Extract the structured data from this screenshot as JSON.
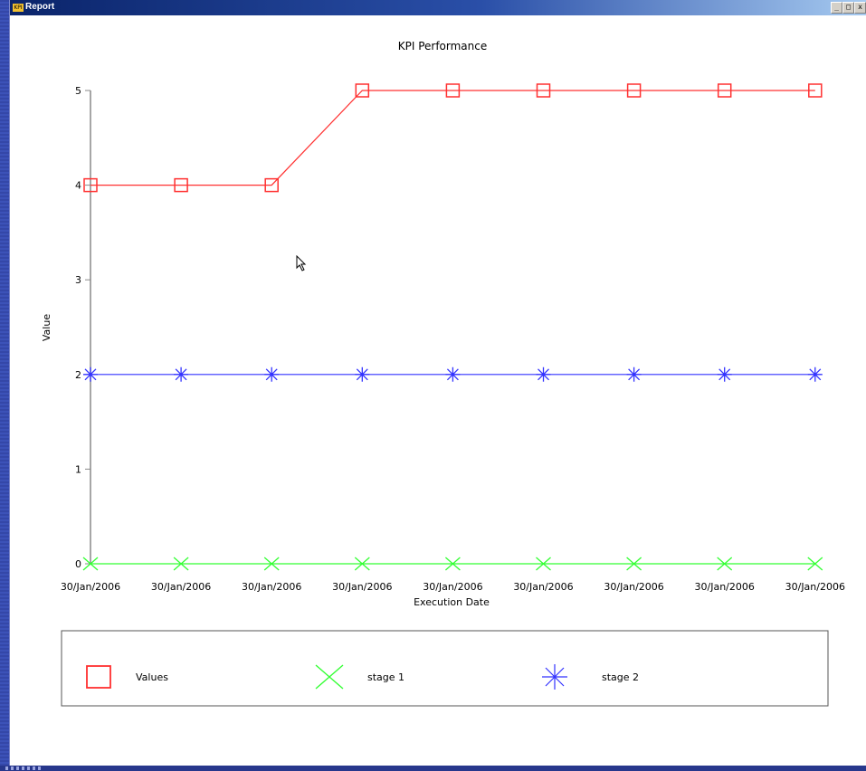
{
  "window": {
    "title": "Report",
    "app_icon_text": "KPI",
    "minimize": "_",
    "maximize": "□",
    "close": "x"
  },
  "colors": {
    "values": "#ff3030",
    "stage1": "#33ff33",
    "stage2": "#3333ff",
    "axis": "#888888"
  },
  "chart_data": {
    "type": "line",
    "title": "KPI Performance",
    "xlabel": "Execution Date",
    "ylabel": "Value",
    "categories": [
      "30/Jan/2006",
      "30/Jan/2006",
      "30/Jan/2006",
      "30/Jan/2006",
      "30/Jan/2006",
      "30/Jan/2006",
      "30/Jan/2006",
      "30/Jan/2006",
      "30/Jan/2006"
    ],
    "ylim": [
      0,
      5
    ],
    "yticks": [
      0,
      1,
      2,
      3,
      4,
      5
    ],
    "grid": false,
    "legend_position": "bottom",
    "series": [
      {
        "name": "Values",
        "marker": "square",
        "color": "#ff3030",
        "values": [
          4,
          4,
          4,
          5,
          5,
          5,
          5,
          5,
          5
        ]
      },
      {
        "name": "stage 1",
        "marker": "x",
        "color": "#33ff33",
        "values": [
          0,
          0,
          0,
          0,
          0,
          0,
          0,
          0,
          0
        ]
      },
      {
        "name": "stage 2",
        "marker": "asterisk",
        "color": "#3333ff",
        "values": [
          2,
          2,
          2,
          2,
          2,
          2,
          2,
          2,
          2
        ]
      }
    ]
  }
}
